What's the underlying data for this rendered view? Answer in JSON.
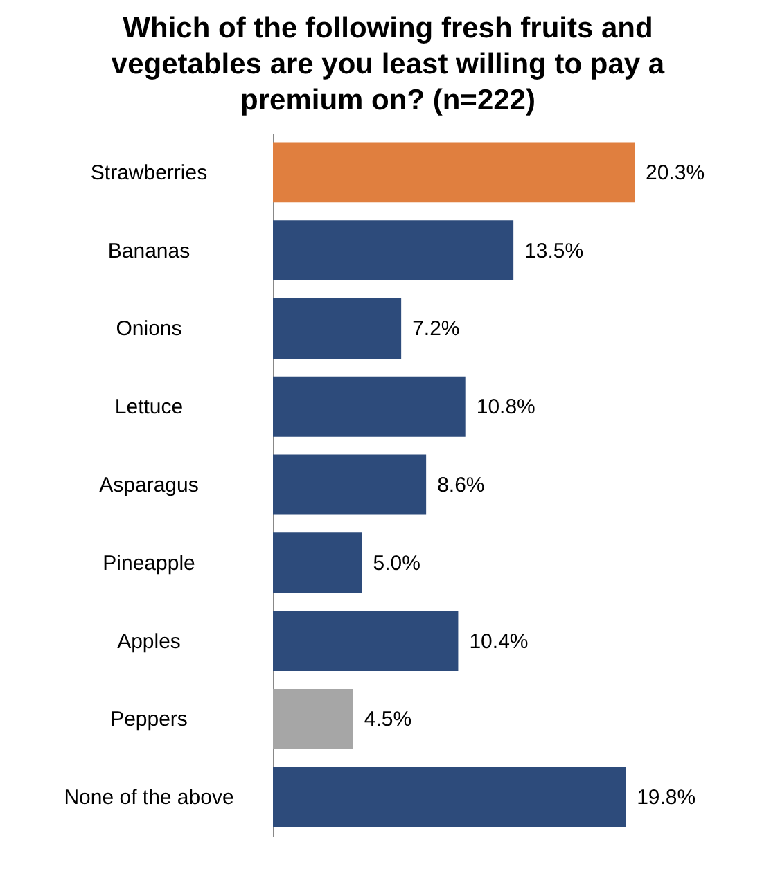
{
  "chart_data": {
    "type": "bar",
    "orientation": "horizontal",
    "title": "Which of the following fresh fruits and vegetables are you least willing to pay a premium on? (n=222)",
    "categories": [
      "Strawberries",
      "Bananas",
      "Onions",
      "Lettuce",
      "Asparagus",
      "Pineapple",
      "Apples",
      "Peppers",
      "None of the above"
    ],
    "values": [
      20.3,
      13.5,
      7.2,
      10.8,
      8.6,
      5.0,
      10.4,
      4.5,
      19.8
    ],
    "colors": [
      "#e07f3f",
      "#2d4b7b",
      "#2d4b7b",
      "#2d4b7b",
      "#2d4b7b",
      "#2d4b7b",
      "#2d4b7b",
      "#a6a6a6",
      "#2d4b7b"
    ],
    "value_labels": [
      "20.3%",
      "13.5%",
      "7.2%",
      "10.8%",
      "8.6%",
      "5.0%",
      "10.4%",
      "4.5%",
      "19.8%"
    ]
  }
}
